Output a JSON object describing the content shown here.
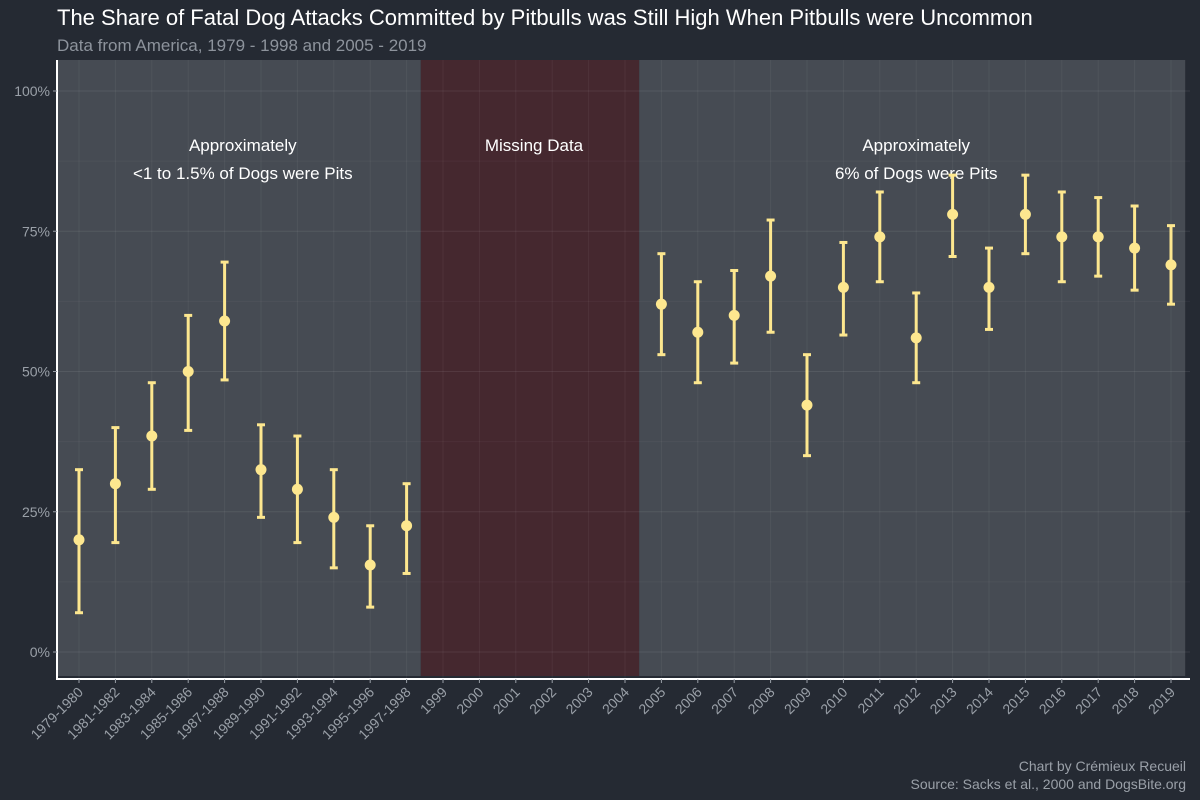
{
  "title": "The Share of Fatal Dog Attacks Committed by Pitbulls was Still High When Pitbulls were Uncommon",
  "subtitle": "Data from America, 1979 - 1998 and 2005 - 2019",
  "caption": {
    "credit": "Chart by Crémieux Recueil",
    "source": "Source: Sacks et al., 2000 and DogsBite.org"
  },
  "colors": {
    "background": "#252a33",
    "panel": "#464b53",
    "missing_panel": "#45282f",
    "point": "#fde78f",
    "text": "#ffffff",
    "muted": "#9aa0a8"
  },
  "chart_data": {
    "type": "scatter",
    "error_bars": true,
    "categories": [
      "1979-1980",
      "1981-1982",
      "1983-1984",
      "1985-1986",
      "1987-1988",
      "1989-1990",
      "1991-1992",
      "1993-1994",
      "1995-1996",
      "1997-1998",
      "1999",
      "2000",
      "2001",
      "2002",
      "2003",
      "2004",
      "2005",
      "2006",
      "2007",
      "2008",
      "2009",
      "2010",
      "2011",
      "2012",
      "2013",
      "2014",
      "2015",
      "2016",
      "2017",
      "2018",
      "2019"
    ],
    "values": [
      20,
      30,
      38.5,
      50,
      59,
      32.5,
      29,
      24,
      15.5,
      22.5,
      null,
      null,
      null,
      null,
      null,
      null,
      62,
      57,
      60,
      67,
      44,
      65,
      74,
      56,
      78,
      65,
      78,
      74,
      74,
      72,
      69
    ],
    "lower": [
      7,
      19.5,
      29,
      39.5,
      48.5,
      24,
      19.5,
      15,
      8,
      14,
      null,
      null,
      null,
      null,
      null,
      null,
      53,
      48,
      51.5,
      57,
      35,
      56.5,
      66,
      48,
      70.5,
      57.5,
      71,
      66,
      67,
      64.5,
      62
    ],
    "upper": [
      32.5,
      40,
      48,
      60,
      69.5,
      40.5,
      38.5,
      32.5,
      22.5,
      30,
      null,
      null,
      null,
      null,
      null,
      null,
      71,
      66,
      68,
      77,
      53,
      73,
      82,
      64,
      85,
      72,
      85,
      82,
      81,
      79.5,
      76
    ],
    "ylim": [
      0,
      100
    ],
    "y_ticks": [
      0,
      25,
      50,
      75,
      100
    ],
    "y_tick_labels": [
      "0%",
      "25%",
      "50%",
      "75%",
      "100%"
    ],
    "grid": true,
    "regions": [
      {
        "kind": "period",
        "from": "1979-1980",
        "to": "1997-1998",
        "label_lines": [
          "Approximately",
          "<1 to 1.5% of Dogs were Pits"
        ]
      },
      {
        "kind": "missing",
        "from": "1999",
        "to": "2004",
        "label_lines": [
          "Missing Data"
        ]
      },
      {
        "kind": "period",
        "from": "2005",
        "to": "2019",
        "label_lines": [
          "Approximately",
          "6% of Dogs were Pits"
        ]
      }
    ]
  }
}
